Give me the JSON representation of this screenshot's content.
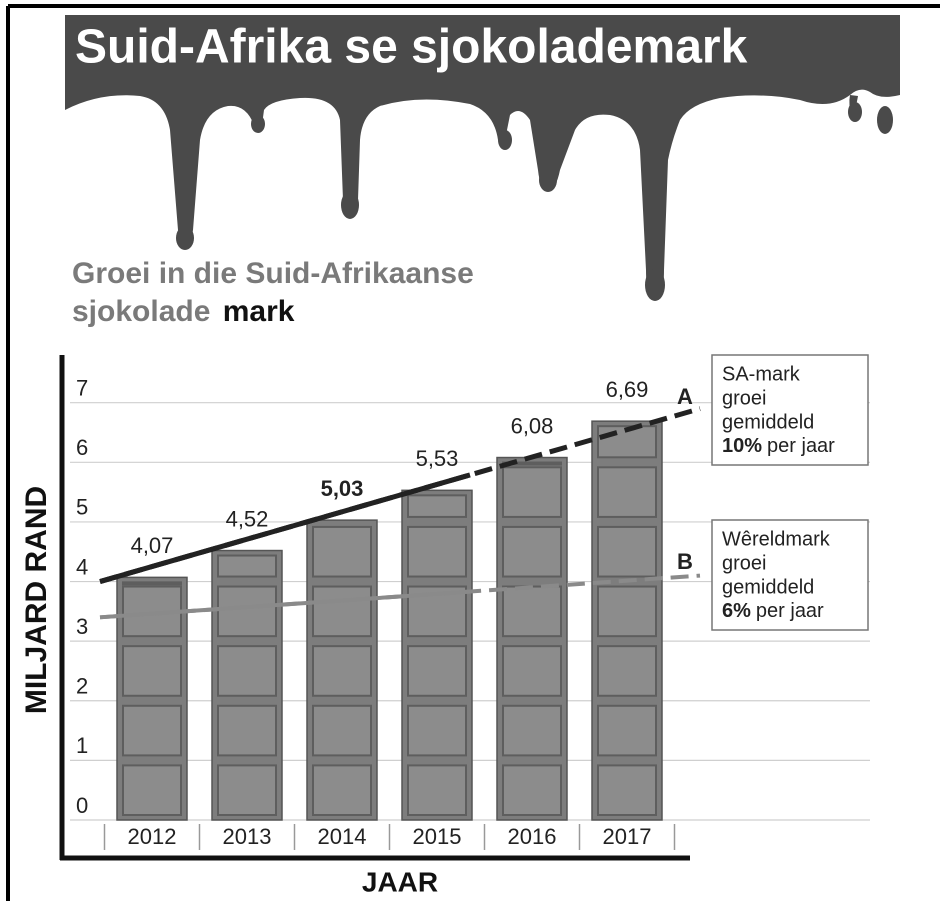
{
  "chart_data": {
    "type": "bar",
    "title": "Suid-Afrika se sjokolademark",
    "subtitle": [
      "Groei in die Suid-Afrikaanse",
      "sjokolade",
      "mark"
    ],
    "y_label": "MILJARD RAND",
    "x_label": "JAAR",
    "categories": [
      "2012",
      "2013",
      "2014",
      "2015",
      "2016",
      "2017"
    ],
    "values": [
      4.07,
      4.52,
      5.03,
      5.53,
      6.08,
      6.69
    ],
    "value_labels": [
      "4,07",
      "4,52",
      "5,03",
      "5,53",
      "6,08",
      "6,69"
    ],
    "color": "#7d7d7d",
    "ylim": [
      0,
      7.8
    ],
    "yticks": [
      0,
      1,
      2,
      3,
      4,
      5,
      6,
      7
    ],
    "grid": true,
    "trend_lines": [
      {
        "label": "A",
        "start": 4.0,
        "end": 6.9,
        "color": "#222222",
        "note": [
          "SA-mark",
          "groei",
          "gemiddeld"
        ],
        "rate": "10%",
        "rate_suffix": "per jaar"
      },
      {
        "label": "B",
        "start": 3.4,
        "end": 4.1,
        "color": "#8a8a8a",
        "note": [
          "Wêreldmark",
          "groei",
          "gemiddeld"
        ],
        "rate": "6%",
        "rate_suffix": "per jaar"
      }
    ]
  }
}
